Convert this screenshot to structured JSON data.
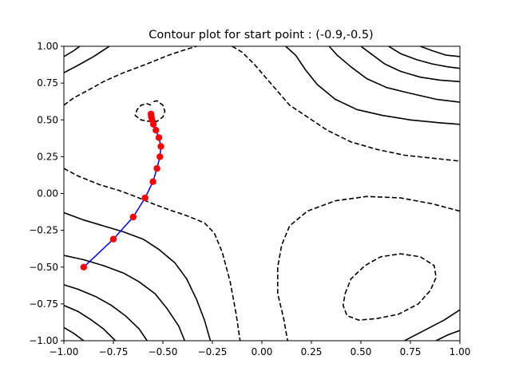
{
  "chart_data": {
    "type": "contour",
    "title": "Contour plot for start point : (-0.9,-0.5)",
    "xlabel": "",
    "ylabel": "",
    "xlim": [
      -1.0,
      1.0
    ],
    "ylim": [
      -1.0,
      1.0
    ],
    "x_ticks": [
      "−1.00",
      "−0.75",
      "−0.50",
      "−0.25",
      "0.00",
      "0.25",
      "0.50",
      "0.75",
      "1.00"
    ],
    "y_ticks": [
      "1.00",
      "0.75",
      "0.50",
      "0.25",
      "0.00",
      "−0.25",
      "−0.50",
      "−0.75",
      "−1.00"
    ],
    "x_tick_values": [
      -1.0,
      -0.75,
      -0.5,
      -0.25,
      0.0,
      0.25,
      0.5,
      0.75,
      1.0
    ],
    "y_tick_values": [
      1.0,
      0.75,
      0.5,
      0.25,
      0.0,
      -0.25,
      -0.5,
      -0.75,
      -1.0
    ],
    "grid": false,
    "colors": {
      "contour": "#000000",
      "path_line": "#0000ff",
      "path_points": "#ff0000"
    },
    "contours": [
      {
        "style": "dashed",
        "points": [
          [
            -1.0,
            0.17
          ],
          [
            -0.93,
            0.12
          ],
          [
            -0.82,
            0.06
          ],
          [
            -0.72,
            0.02
          ],
          [
            -0.64,
            -0.02
          ],
          [
            -0.55,
            -0.07
          ],
          [
            -0.47,
            -0.11
          ],
          [
            -0.38,
            -0.15
          ],
          [
            -0.29,
            -0.2
          ],
          [
            -0.24,
            -0.27
          ],
          [
            -0.2,
            -0.4
          ],
          [
            -0.16,
            -0.6
          ],
          [
            -0.13,
            -0.82
          ],
          [
            -0.11,
            -1.0
          ]
        ]
      },
      {
        "style": "dashed",
        "points": [
          [
            -1.0,
            0.6
          ],
          [
            -0.95,
            0.65
          ],
          [
            -0.88,
            0.7
          ],
          [
            -0.8,
            0.76
          ],
          [
            -0.7,
            0.82
          ],
          [
            -0.58,
            0.88
          ],
          [
            -0.47,
            0.94
          ],
          [
            -0.38,
            0.98
          ],
          [
            -0.33,
            1.0
          ]
        ]
      },
      {
        "style": "dashed",
        "points": [
          [
            -0.15,
            1.0
          ],
          [
            -0.1,
            0.96
          ],
          [
            -0.04,
            0.88
          ],
          [
            0.05,
            0.74
          ],
          [
            0.14,
            0.6
          ],
          [
            0.23,
            0.52
          ],
          [
            0.33,
            0.43
          ],
          [
            0.45,
            0.35
          ],
          [
            0.58,
            0.3
          ],
          [
            0.72,
            0.26
          ],
          [
            0.86,
            0.24
          ],
          [
            1.0,
            0.22
          ]
        ]
      },
      {
        "style": "dashed",
        "points": [
          [
            1.0,
            -0.12
          ],
          [
            0.86,
            -0.07
          ],
          [
            0.7,
            -0.03
          ],
          [
            0.53,
            -0.02
          ],
          [
            0.37,
            -0.05
          ],
          [
            0.23,
            -0.12
          ],
          [
            0.14,
            -0.22
          ],
          [
            0.1,
            -0.35
          ],
          [
            0.08,
            -0.5
          ],
          [
            0.08,
            -0.68
          ],
          [
            0.11,
            -0.85
          ],
          [
            0.13,
            -1.0
          ]
        ]
      },
      {
        "style": "dashed",
        "points": [
          [
            0.42,
            -0.68
          ],
          [
            0.45,
            -0.58
          ],
          [
            0.52,
            -0.49
          ],
          [
            0.6,
            -0.43
          ],
          [
            0.7,
            -0.41
          ],
          [
            0.8,
            -0.43
          ],
          [
            0.87,
            -0.49
          ],
          [
            0.88,
            -0.57
          ],
          [
            0.85,
            -0.66
          ],
          [
            0.79,
            -0.75
          ],
          [
            0.69,
            -0.82
          ],
          [
            0.58,
            -0.85
          ],
          [
            0.49,
            -0.86
          ],
          [
            0.43,
            -0.83
          ],
          [
            0.41,
            -0.76
          ],
          [
            0.42,
            -0.68
          ]
        ]
      },
      {
        "style": "dashed",
        "points": [
          [
            -0.56,
            0.6
          ],
          [
            -0.58,
            0.61
          ],
          [
            -0.61,
            0.6
          ],
          [
            -0.63,
            0.57
          ],
          [
            -0.64,
            0.53
          ],
          [
            -0.61,
            0.5
          ],
          [
            -0.57,
            0.49
          ],
          [
            -0.53,
            0.49
          ],
          [
            -0.5,
            0.52
          ],
          [
            -0.49,
            0.56
          ],
          [
            -0.5,
            0.6
          ],
          [
            -0.53,
            0.63
          ],
          [
            -0.56,
            0.62
          ]
        ]
      },
      {
        "style": "solid",
        "points": [
          [
            -1.0,
            -0.13
          ],
          [
            -0.9,
            -0.18
          ],
          [
            -0.8,
            -0.22
          ],
          [
            -0.7,
            -0.26
          ],
          [
            -0.6,
            -0.31
          ],
          [
            -0.52,
            -0.38
          ],
          [
            -0.44,
            -0.47
          ],
          [
            -0.38,
            -0.58
          ],
          [
            -0.33,
            -0.72
          ],
          [
            -0.29,
            -0.86
          ],
          [
            -0.26,
            -1.0
          ]
        ]
      },
      {
        "style": "solid",
        "points": [
          [
            -1.0,
            -0.42
          ],
          [
            -0.9,
            -0.45
          ],
          [
            -0.8,
            -0.49
          ],
          [
            -0.7,
            -0.54
          ],
          [
            -0.62,
            -0.6
          ],
          [
            -0.54,
            -0.68
          ],
          [
            -0.48,
            -0.78
          ],
          [
            -0.42,
            -0.9
          ],
          [
            -0.39,
            -1.0
          ]
        ]
      },
      {
        "style": "solid",
        "points": [
          [
            -1.0,
            -0.62
          ],
          [
            -0.93,
            -0.65
          ],
          [
            -0.84,
            -0.7
          ],
          [
            -0.76,
            -0.76
          ],
          [
            -0.69,
            -0.83
          ],
          [
            -0.62,
            -0.92
          ],
          [
            -0.58,
            -1.0
          ]
        ]
      },
      {
        "style": "solid",
        "points": [
          [
            -1.0,
            -0.76
          ],
          [
            -0.93,
            -0.8
          ],
          [
            -0.86,
            -0.86
          ],
          [
            -0.8,
            -0.92
          ],
          [
            -0.74,
            -1.0
          ]
        ]
      },
      {
        "style": "solid",
        "points": [
          [
            -1.0,
            -0.91
          ],
          [
            -0.95,
            -0.95
          ],
          [
            -0.9,
            -1.0
          ]
        ]
      },
      {
        "style": "solid",
        "points": [
          [
            -1.0,
            0.82
          ],
          [
            -0.93,
            0.87
          ],
          [
            -0.85,
            0.93
          ],
          [
            -0.77,
            1.0
          ]
        ]
      },
      {
        "style": "solid",
        "points": [
          [
            -1.0,
            0.93
          ],
          [
            -0.95,
            0.97
          ],
          [
            -0.92,
            1.0
          ]
        ]
      },
      {
        "style": "solid",
        "points": [
          [
            0.12,
            1.0
          ],
          [
            0.17,
            0.94
          ],
          [
            0.22,
            0.84
          ],
          [
            0.28,
            0.74
          ],
          [
            0.37,
            0.64
          ],
          [
            0.48,
            0.57
          ],
          [
            0.61,
            0.53
          ],
          [
            0.75,
            0.5
          ],
          [
            0.9,
            0.48
          ],
          [
            1.0,
            0.47
          ]
        ]
      },
      {
        "style": "solid",
        "points": [
          [
            0.34,
            1.0
          ],
          [
            0.38,
            0.94
          ],
          [
            0.45,
            0.86
          ],
          [
            0.53,
            0.78
          ],
          [
            0.63,
            0.72
          ],
          [
            0.75,
            0.68
          ],
          [
            0.88,
            0.64
          ],
          [
            1.0,
            0.62
          ]
        ]
      },
      {
        "style": "solid",
        "points": [
          [
            0.5,
            1.0
          ],
          [
            0.55,
            0.95
          ],
          [
            0.62,
            0.88
          ],
          [
            0.7,
            0.83
          ],
          [
            0.8,
            0.79
          ],
          [
            0.9,
            0.77
          ],
          [
            1.0,
            0.76
          ]
        ]
      },
      {
        "style": "solid",
        "points": [
          [
            0.64,
            1.0
          ],
          [
            0.7,
            0.95
          ],
          [
            0.78,
            0.91
          ],
          [
            0.86,
            0.88
          ],
          [
            0.94,
            0.86
          ],
          [
            1.0,
            0.85
          ]
        ]
      },
      {
        "style": "solid",
        "points": [
          [
            0.8,
            1.0
          ],
          [
            0.86,
            0.97
          ],
          [
            0.93,
            0.94
          ],
          [
            1.0,
            0.93
          ]
        ]
      },
      {
        "style": "solid",
        "points": [
          [
            0.72,
            -1.0
          ],
          [
            0.82,
            -0.93
          ],
          [
            0.92,
            -0.86
          ],
          [
            1.0,
            -0.79
          ]
        ]
      },
      {
        "style": "solid",
        "points": [
          [
            0.88,
            -1.0
          ],
          [
            0.94,
            -0.96
          ],
          [
            1.0,
            -0.93
          ]
        ]
      }
    ],
    "optimizer_path": {
      "x": [
        -0.9,
        -0.75,
        -0.65,
        -0.59,
        -0.55,
        -0.53,
        -0.515,
        -0.51,
        -0.52,
        -0.535,
        -0.548,
        -0.555,
        -0.558,
        -0.56
      ],
      "y": [
        -0.5,
        -0.31,
        -0.16,
        -0.03,
        0.08,
        0.17,
        0.25,
        0.32,
        0.38,
        0.43,
        0.47,
        0.5,
        0.52,
        0.54
      ]
    }
  }
}
